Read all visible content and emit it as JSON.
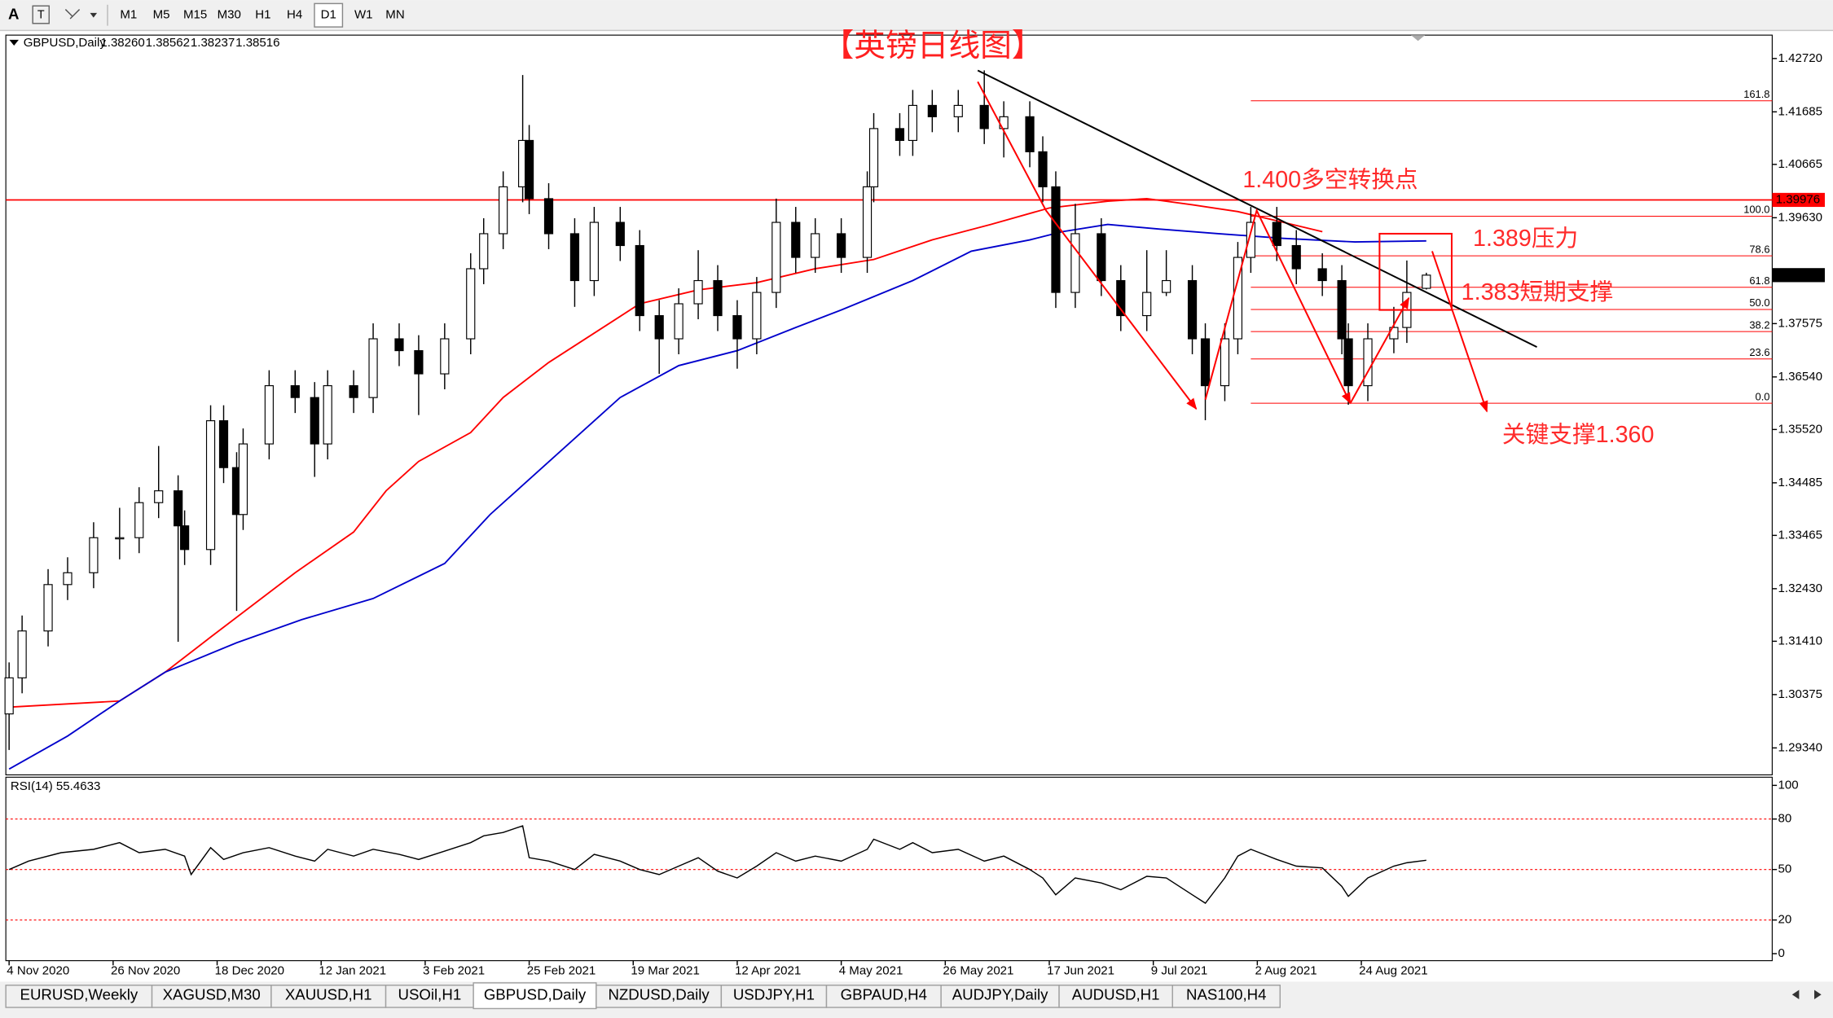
{
  "toolbar": {
    "font_button": "A",
    "timeframes": [
      {
        "label": "M1",
        "active": false
      },
      {
        "label": "M5",
        "active": false
      },
      {
        "label": "M15",
        "active": false
      },
      {
        "label": "M30",
        "active": false
      },
      {
        "label": "H1",
        "active": false
      },
      {
        "label": "H4",
        "active": false
      },
      {
        "label": "D1",
        "active": true
      },
      {
        "label": "W1",
        "active": false
      },
      {
        "label": "MN",
        "active": false
      }
    ]
  },
  "tabs": [
    {
      "label": "EURUSD,Weekly",
      "active": false
    },
    {
      "label": "XAGUSD,M30",
      "active": false
    },
    {
      "label": "XAUUSD,H1",
      "active": false
    },
    {
      "label": "USOil,H1",
      "active": false
    },
    {
      "label": "GBPUSD,Daily",
      "active": true
    },
    {
      "label": "NZDUSD,Daily",
      "active": false
    },
    {
      "label": "USDJPY,H1",
      "active": false
    },
    {
      "label": "GBPAUD,H4",
      "active": false
    },
    {
      "label": "AUDJPY,Daily",
      "active": false
    },
    {
      "label": "AUDUSD,H1",
      "active": false
    },
    {
      "label": "NAS100,H4",
      "active": false
    }
  ],
  "chart_data": [
    {
      "type": "candlestick",
      "title": "【英镑日线图】",
      "symbol": "GBPUSD,Daily",
      "ohlc": [
        "1.38260",
        "1.38562",
        "1.38237",
        "1.38516"
      ],
      "xlim": [
        -0.5,
        271.2
      ],
      "ylim": [
        1.28817,
        1.43174
      ],
      "yticks": [
        {
          "value": 1.4272,
          "label": "1.42720"
        },
        {
          "value": 1.41685,
          "label": "1.41685"
        },
        {
          "value": 1.40665,
          "label": "1.40665"
        },
        {
          "value": 1.3963,
          "label": "1.39630"
        },
        {
          "value": 1.37575,
          "label": "1.37575"
        },
        {
          "value": 1.3654,
          "label": "1.36540"
        },
        {
          "value": 1.3552,
          "label": "1.35520"
        },
        {
          "value": 1.34485,
          "label": "1.34485"
        },
        {
          "value": 1.33465,
          "label": "1.33465"
        },
        {
          "value": 1.3243,
          "label": "1.32430"
        },
        {
          "value": 1.3141,
          "label": "1.31410"
        },
        {
          "value": 1.30375,
          "label": "1.30375"
        },
        {
          "value": 1.2934,
          "label": "1.29340"
        }
      ],
      "grid": false,
      "up_color": "#ffffff",
      "down_color": "#000000",
      "x": [
        0,
        2,
        6,
        9,
        13,
        17,
        20,
        23,
        26,
        27,
        31,
        33,
        35,
        36,
        40,
        44,
        47,
        49,
        53,
        56,
        60,
        63,
        67,
        71,
        73,
        76,
        79,
        80,
        83,
        87,
        90,
        94,
        97,
        100,
        103,
        106,
        109,
        112,
        115,
        118,
        121,
        124,
        128,
        132,
        133,
        137,
        139,
        142,
        146,
        150,
        153,
        157,
        159,
        161,
        164,
        168,
        171,
        175,
        178,
        182,
        184,
        187,
        189,
        191,
        195,
        198,
        202,
        205,
        206,
        209,
        213,
        215,
        218
      ],
      "open": [
        1.3,
        1.307,
        1.3161,
        1.3251,
        1.3274,
        1.3342,
        1.3342,
        1.341,
        1.3433,
        1.3365,
        1.3319,
        1.3569,
        1.3478,
        1.3387,
        1.3524,
        1.3637,
        1.3614,
        1.3524,
        1.3637,
        1.3614,
        1.3728,
        1.3705,
        1.366,
        1.3728,
        1.3864,
        1.3932,
        1.4023,
        1.4113,
        1.4,
        1.3932,
        1.3841,
        1.3954,
        1.3909,
        1.3773,
        1.3728,
        1.3796,
        1.3841,
        1.3773,
        1.3728,
        1.3818,
        1.3954,
        1.3886,
        1.3932,
        1.3886,
        1.4023,
        1.4136,
        1.4113,
        1.4181,
        1.4159,
        1.4181,
        1.4136,
        1.4159,
        1.4091,
        1.4023,
        1.3818,
        1.3932,
        1.3841,
        1.3773,
        1.3818,
        1.3841,
        1.3728,
        1.3637,
        1.3728,
        1.3886,
        1.3954,
        1.3909,
        1.3864,
        1.3841,
        1.3728,
        1.3637,
        1.3728,
        1.375,
        1.3826
      ],
      "high": [
        1.31,
        1.3191,
        1.3281,
        1.3304,
        1.3372,
        1.34,
        1.344,
        1.352,
        1.3463,
        1.3395,
        1.3599,
        1.3599,
        1.3508,
        1.3554,
        1.3667,
        1.3667,
        1.3644,
        1.3667,
        1.3667,
        1.3758,
        1.3758,
        1.3735,
        1.3758,
        1.3894,
        1.3962,
        1.4053,
        1.424,
        1.4143,
        1.403,
        1.3962,
        1.3984,
        1.3984,
        1.3939,
        1.3803,
        1.3826,
        1.39,
        1.3871,
        1.3803,
        1.3848,
        1.4,
        1.3984,
        1.3962,
        1.3962,
        1.4053,
        1.4166,
        1.4166,
        1.4211,
        1.4211,
        1.4211,
        1.4249,
        1.4189,
        1.4189,
        1.4121,
        1.4053,
        1.399,
        1.3962,
        1.3871,
        1.39,
        1.39,
        1.3871,
        1.3758,
        1.3758,
        1.3916,
        1.3984,
        1.3984,
        1.3939,
        1.3894,
        1.3871,
        1.3758,
        1.3758,
        1.379,
        1.388,
        1.38562
      ],
      "low": [
        1.293,
        1.304,
        1.3131,
        1.3221,
        1.3244,
        1.33,
        1.3312,
        1.338,
        1.314,
        1.3289,
        1.3289,
        1.3448,
        1.32,
        1.3357,
        1.3494,
        1.3584,
        1.346,
        1.3494,
        1.3584,
        1.3584,
        1.3675,
        1.358,
        1.363,
        1.3698,
        1.3834,
        1.3902,
        1.3993,
        1.397,
        1.3902,
        1.379,
        1.3811,
        1.3879,
        1.3743,
        1.366,
        1.3698,
        1.3766,
        1.3743,
        1.367,
        1.3698,
        1.3788,
        1.3856,
        1.3856,
        1.3856,
        1.3856,
        1.3993,
        1.4083,
        1.4083,
        1.4129,
        1.4129,
        1.4106,
        1.408,
        1.4061,
        1.3993,
        1.3788,
        1.3788,
        1.3811,
        1.3743,
        1.3743,
        1.3811,
        1.3698,
        1.357,
        1.3607,
        1.3698,
        1.3856,
        1.3879,
        1.3834,
        1.3811,
        1.3698,
        1.36,
        1.3607,
        1.37,
        1.372,
        1.38237
      ],
      "close": [
        1.307,
        1.3161,
        1.3251,
        1.3274,
        1.3342,
        1.3342,
        1.341,
        1.3433,
        1.3365,
        1.3319,
        1.3569,
        1.3478,
        1.3387,
        1.3524,
        1.3637,
        1.3614,
        1.3524,
        1.3637,
        1.3614,
        1.3728,
        1.3705,
        1.366,
        1.3728,
        1.3864,
        1.3932,
        1.4023,
        1.4113,
        1.4,
        1.3932,
        1.3841,
        1.3954,
        1.3909,
        1.3773,
        1.3728,
        1.3796,
        1.3841,
        1.3773,
        1.3728,
        1.3818,
        1.3954,
        1.3886,
        1.3932,
        1.3886,
        1.4023,
        1.4136,
        1.4113,
        1.4181,
        1.4159,
        1.4181,
        1.4136,
        1.4159,
        1.4091,
        1.4023,
        1.3818,
        1.3932,
        1.3841,
        1.3773,
        1.3818,
        1.3841,
        1.3728,
        1.3637,
        1.3728,
        1.3886,
        1.3954,
        1.3909,
        1.3864,
        1.3841,
        1.3728,
        1.3637,
        1.3728,
        1.375,
        1.3818,
        1.38516
      ],
      "lines": [
        {
          "color": "#ff0000",
          "x": [
            0,
            17,
            24,
            31,
            44,
            53,
            58,
            63,
            71,
            76,
            83,
            90,
            97,
            106,
            115,
            124,
            133,
            142,
            151,
            160,
            169,
            175,
            182,
            189,
            196,
            202
          ],
          "values": [
            1.3013,
            1.3025,
            1.3081,
            1.3149,
            1.3274,
            1.3353,
            1.3433,
            1.349,
            1.3546,
            1.3614,
            1.3682,
            1.3739,
            1.3796,
            1.3823,
            1.3837,
            1.3864,
            1.3882,
            1.392,
            1.395,
            1.3982,
            1.3995,
            1.4,
            1.3988,
            1.3975,
            1.3954,
            1.3936
          ]
        },
        {
          "color": "#0000cc",
          "x": [
            0,
            9,
            17,
            24,
            35,
            45,
            56,
            67,
            74,
            85,
            94,
            103,
            112,
            121,
            128,
            139,
            148,
            157,
            162,
            169,
            177,
            186,
            196,
            207,
            218
          ],
          "values": [
            1.2893,
            1.2957,
            1.3025,
            1.3081,
            1.3138,
            1.3183,
            1.3224,
            1.3292,
            1.3387,
            1.3512,
            1.3614,
            1.3676,
            1.3705,
            1.375,
            1.3784,
            1.3841,
            1.3898,
            1.392,
            1.3936,
            1.395,
            1.3941,
            1.3932,
            1.3923,
            1.3916,
            1.3918
          ]
        }
      ],
      "hline": {
        "value": 1.39976,
        "label": "1.39976",
        "color": "#ff0000"
      },
      "current_price": {
        "value": 1.38516,
        "label": "1.38516"
      },
      "fibo": {
        "color": "#ff0000",
        "x_start": 191,
        "levels": [
          {
            "label": "161.8",
            "price": 1.419
          },
          {
            "label": "100.0",
            "price": 1.3966
          },
          {
            "label": "78.6",
            "price": 1.3889
          },
          {
            "label": "61.8",
            "price": 1.3828
          },
          {
            "label": "50.0",
            "price": 1.3785
          },
          {
            "label": "38.2",
            "price": 1.3742
          },
          {
            "label": "23.6",
            "price": 1.3689
          },
          {
            "label": "0.0",
            "price": 1.3603
          }
        ]
      },
      "drawings": [
        {
          "color": "#000000",
          "arrow": false,
          "points": [
            [
              149,
              1.4249
            ],
            [
              235,
              1.3712
            ]
          ]
        },
        {
          "color": "#ff0000",
          "arrow": true,
          "points": [
            [
              149,
              1.4227
            ],
            [
              159.5,
              1.3977
            ],
            [
              182.6,
              1.3592
            ]
          ]
        },
        {
          "color": "#ff0000",
          "arrow": true,
          "points": [
            [
              184,
              1.361
            ],
            [
              191.9,
              1.3977
            ],
            [
              206.3,
              1.3603
            ]
          ]
        },
        {
          "color": "#ff0000",
          "arrow": true,
          "points": [
            [
              206.3,
              1.3603
            ],
            [
              215.3,
              1.3807
            ]
          ]
        },
        {
          "color": "#ff0000",
          "arrow": true,
          "points": [
            [
              218.9,
              1.3898
            ],
            [
              227.3,
              1.3587
            ]
          ]
        }
      ],
      "boxes": [
        {
          "color": "#ff0000",
          "points": [
            [
              210.8,
              1.3932
            ],
            [
              221.9,
              1.3784
            ]
          ]
        }
      ],
      "annotations": [
        "1.400多空转换点",
        "1.389压力",
        "1.383短期支撑",
        "关键支撑1.360"
      ]
    },
    {
      "type": "line",
      "label": "RSI(14) 55.4633",
      "color": "#000000",
      "xlim": [
        -0.5,
        271.2
      ],
      "ylim": [
        -4.17,
        104.86
      ],
      "yticks": [
        0,
        20,
        50,
        80,
        100
      ],
      "levels": [
        20,
        50,
        80
      ],
      "level_color": "#ff0000",
      "xticks": [
        {
          "value": 0,
          "label": "4 Nov 2020"
        },
        {
          "value": 16,
          "label": "26 Nov 2020"
        },
        {
          "value": 32,
          "label": "18 Dec 2020"
        },
        {
          "value": 48,
          "label": "12 Jan 2021"
        },
        {
          "value": 64,
          "label": "3 Feb 2021"
        },
        {
          "value": 80,
          "label": "25 Feb 2021"
        },
        {
          "value": 96,
          "label": "19 Mar 2021"
        },
        {
          "value": 112,
          "label": "12 Apr 2021"
        },
        {
          "value": 128,
          "label": "4 May 2021"
        },
        {
          "value": 144,
          "label": "26 May 2021"
        },
        {
          "value": 160,
          "label": "17 Jun 2021"
        },
        {
          "value": 176,
          "label": "9 Jul 2021"
        },
        {
          "value": 192,
          "label": "2 Aug 2021"
        },
        {
          "value": 208,
          "label": "24 Aug 2021"
        }
      ],
      "x": [
        0,
        3,
        8,
        13,
        17,
        20,
        24,
        27,
        28,
        31,
        33,
        36,
        40,
        44,
        47,
        49,
        53,
        56,
        60,
        63,
        67,
        71,
        73,
        76,
        79,
        80,
        83,
        87,
        90,
        94,
        97,
        100,
        103,
        106,
        109,
        112,
        115,
        118,
        121,
        124,
        128,
        132,
        133,
        137,
        139,
        142,
        146,
        150,
        153,
        157,
        159,
        161,
        164,
        168,
        171,
        175,
        178,
        182,
        184,
        187,
        189,
        191,
        195,
        198,
        202,
        205,
        206,
        209,
        213,
        215,
        218
      ],
      "values": [
        50,
        55,
        60,
        62,
        66,
        60,
        62,
        58,
        47,
        63,
        56,
        60,
        63,
        58,
        55,
        62,
        58,
        62,
        59,
        56,
        61,
        66,
        70,
        72,
        76,
        57,
        55,
        50,
        59,
        55,
        50,
        47,
        52,
        57,
        49,
        45,
        52,
        60,
        55,
        58,
        55,
        62,
        68,
        62,
        66,
        60,
        62,
        55,
        58,
        50,
        45,
        35,
        45,
        42,
        38,
        46,
        45,
        35,
        30,
        45,
        58,
        62,
        56,
        52,
        51,
        40,
        34,
        45,
        52,
        54,
        55.4633
      ]
    }
  ]
}
